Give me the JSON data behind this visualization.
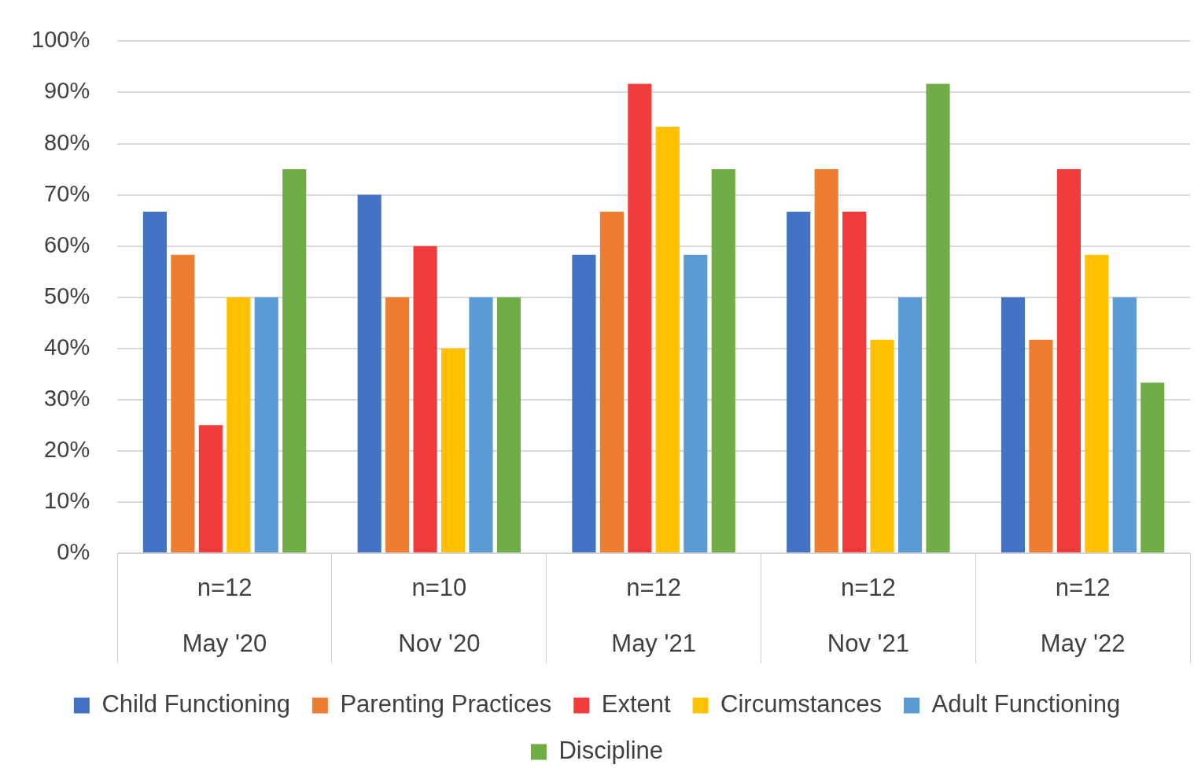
{
  "chart_data": {
    "type": "bar",
    "categories": [
      "n=12\nMay '20",
      "n=10\nNov '20",
      "n=12\nMay '21",
      "n=12\nNov '21",
      "n=12\nMay '22"
    ],
    "series": [
      {
        "name": "Child Functioning",
        "color": "#4472c4",
        "values": [
          66.7,
          70,
          58.3,
          66.7,
          50
        ]
      },
      {
        "name": "Parenting Practices",
        "color": "#ed7d31",
        "values": [
          58.3,
          50,
          66.7,
          75,
          41.7
        ]
      },
      {
        "name": "Extent",
        "color": "#f03c3c",
        "values": [
          25,
          60,
          91.7,
          66.7,
          75
        ]
      },
      {
        "name": "Circumstances",
        "color": "#ffc000",
        "values": [
          50,
          40,
          83.3,
          41.7,
          58.3
        ]
      },
      {
        "name": "Adult Functioning",
        "color": "#5b9bd5",
        "values": [
          50,
          50,
          58.3,
          50,
          50
        ]
      },
      {
        "name": "Discipline",
        "color": "#70ad47",
        "values": [
          75,
          50,
          75,
          91.7,
          33.3
        ]
      }
    ],
    "ylim": [
      0,
      100
    ],
    "yticks": [
      {
        "value": 0,
        "label": "0%"
      },
      {
        "value": 10,
        "label": "10%"
      },
      {
        "value": 20,
        "label": "20%"
      },
      {
        "value": 30,
        "label": "30%"
      },
      {
        "value": 40,
        "label": "40%"
      },
      {
        "value": 50,
        "label": "50%"
      },
      {
        "value": 60,
        "label": "60%"
      },
      {
        "value": 70,
        "label": "70%"
      },
      {
        "value": 80,
        "label": "80%"
      },
      {
        "value": 90,
        "label": "90%"
      },
      {
        "value": 100,
        "label": "100%"
      }
    ],
    "grid": "y",
    "legend": "bottom"
  }
}
